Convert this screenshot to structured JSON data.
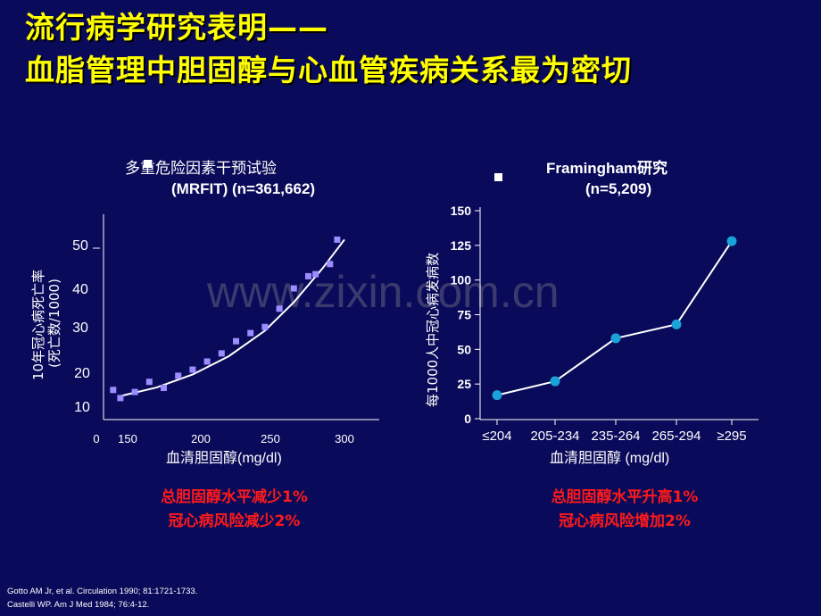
{
  "title": {
    "line1": "流行病学研究表明——",
    "line2": "血脂管理中胆固醇与心血管疾病关系最为密切"
  },
  "watermark": "www.zixin.com.cn",
  "colors": {
    "background": "#0a0a5a",
    "title": "#ffff00",
    "conclusion": "#ff1a1a",
    "scatter_point": "#9b8cff",
    "line_point": "#1aa3d9"
  },
  "chart_data": [
    {
      "type": "scatter",
      "title_line1": "多重危险因素干预试验",
      "title_line2": "(MRFIT) (n=361,662)",
      "ylabel_line1": "10年冠心病死亡率",
      "ylabel_line2": "(死亡数/1000)",
      "xlabel": "血清胆固醇(mg/dl)",
      "x_tick_labels": [
        "0",
        "150",
        "200",
        "250",
        "300"
      ],
      "y_tick_labels": [
        "10",
        "20",
        "30",
        "40",
        "50"
      ],
      "points": [
        {
          "x": 140,
          "y": 14
        },
        {
          "x": 145,
          "y": 12
        },
        {
          "x": 155,
          "y": 13.5
        },
        {
          "x": 165,
          "y": 16
        },
        {
          "x": 175,
          "y": 14.5
        },
        {
          "x": 185,
          "y": 17.5
        },
        {
          "x": 195,
          "y": 19
        },
        {
          "x": 205,
          "y": 21
        },
        {
          "x": 215,
          "y": 23
        },
        {
          "x": 225,
          "y": 26
        },
        {
          "x": 235,
          "y": 28
        },
        {
          "x": 245,
          "y": 29.5
        },
        {
          "x": 255,
          "y": 34
        },
        {
          "x": 265,
          "y": 39
        },
        {
          "x": 275,
          "y": 42
        },
        {
          "x": 280,
          "y": 42.5
        },
        {
          "x": 290,
          "y": 45
        },
        {
          "x": 295,
          "y": 51
        }
      ],
      "trend": [
        {
          "x": 145,
          "y": 12.5
        },
        {
          "x": 170,
          "y": 14.6
        },
        {
          "x": 195,
          "y": 17.8
        },
        {
          "x": 220,
          "y": 22.3
        },
        {
          "x": 245,
          "y": 28.6
        },
        {
          "x": 265,
          "y": 35.6
        },
        {
          "x": 285,
          "y": 44
        },
        {
          "x": 300,
          "y": 51
        }
      ],
      "conclusion_line1": "总胆固醇水平减少1%",
      "conclusion_line2": "冠心病风险减少2%"
    },
    {
      "type": "line",
      "title_line1": "Framingham研究",
      "title_line2": "(n=5,209)",
      "ylabel": "每1000人中冠心病发病数",
      "xlabel": "血清胆固醇 (mg/dl)",
      "categories": [
        "≤204",
        "205-234",
        "235-264",
        "265-294",
        "≥295"
      ],
      "values": [
        17,
        27,
        58,
        68,
        128
      ],
      "ylim": [
        0,
        150
      ],
      "y_ticks": [
        0,
        25,
        50,
        75,
        100,
        125,
        150
      ],
      "conclusion_line1": "总胆固醇水平升高1%",
      "conclusion_line2": "冠心病风险增加2%"
    }
  ],
  "references": [
    "Gotto AM Jr,  et al. Circulation 1990; 81:1721-1733.",
    "Castelli  WP.  Am  J  Med 1984; 76:4-12."
  ]
}
